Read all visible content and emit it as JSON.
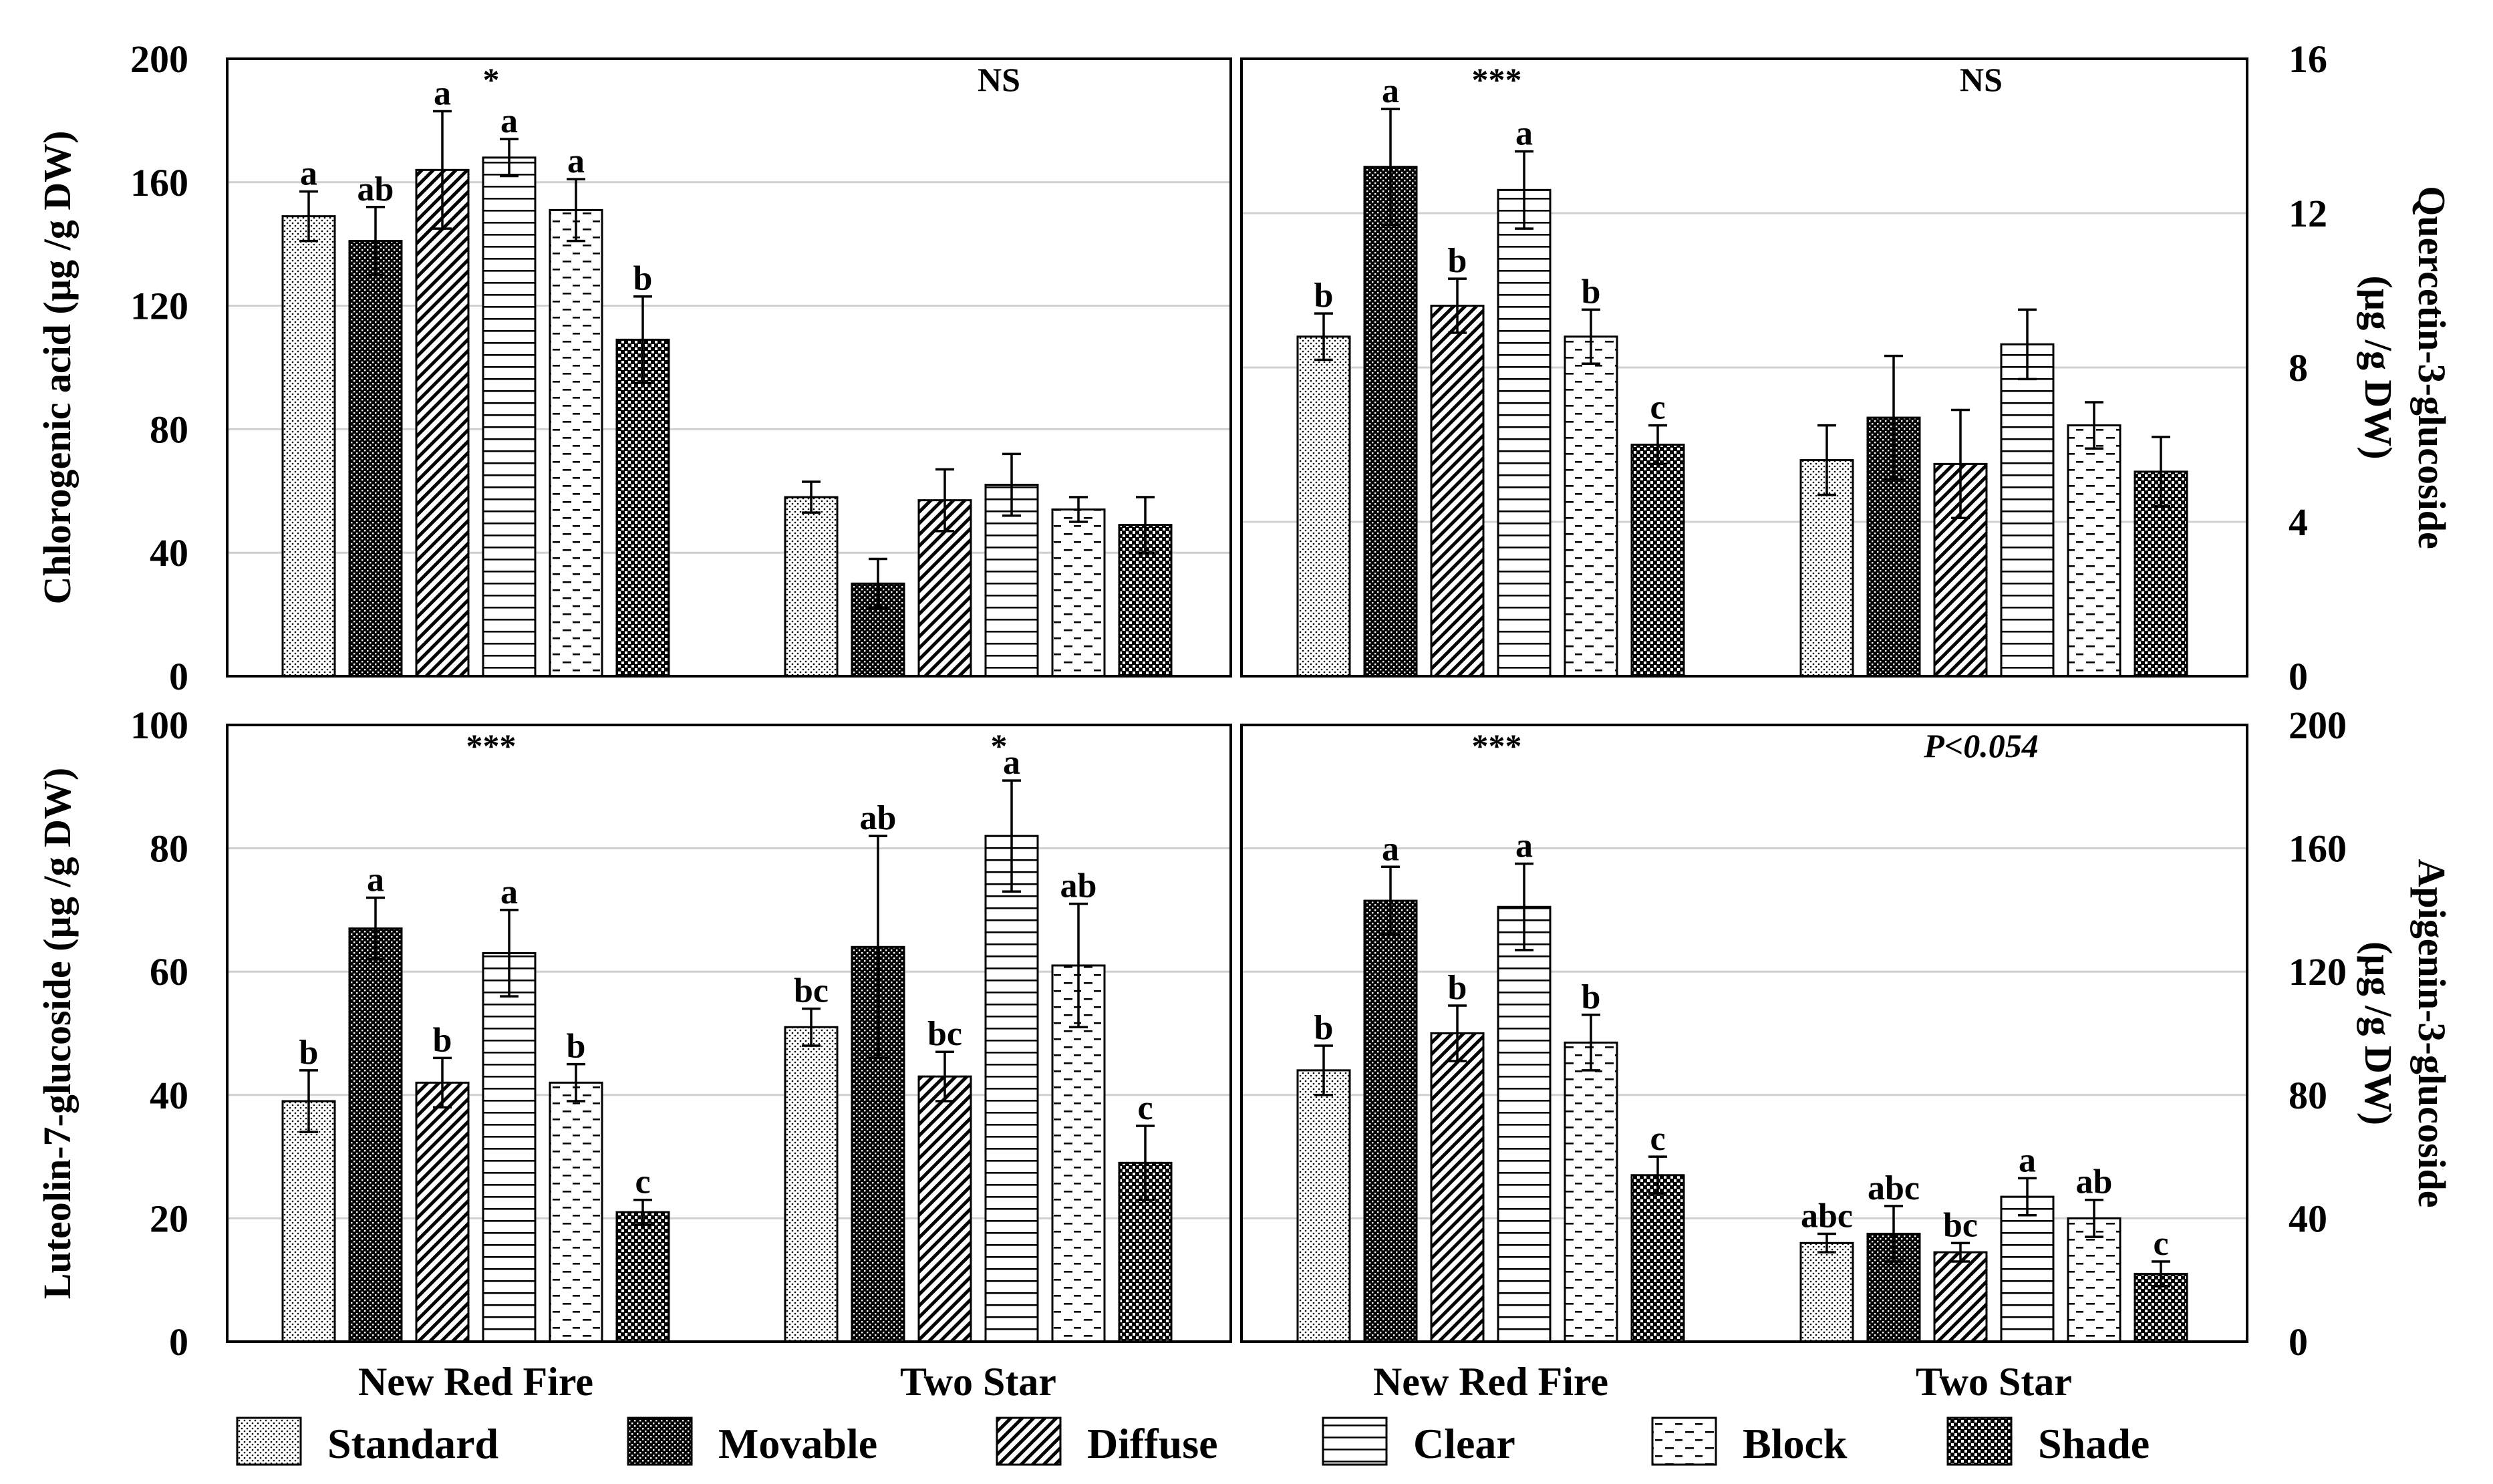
{
  "chart_data": [
    {
      "type": "bar",
      "panel": "top-left",
      "ylabel": "Chlorogenic acid (µg /g DW)",
      "ylim": [
        0,
        200
      ],
      "ytick_labels": [
        "0",
        "40",
        "80",
        "120",
        "160",
        "200"
      ],
      "categories": [
        "New Red Fire",
        "Two Star"
      ],
      "series": [
        {
          "name": "Standard",
          "values": [
            149,
            58
          ],
          "errors": [
            8,
            5
          ],
          "letters": [
            "a",
            ""
          ]
        },
        {
          "name": "Movable",
          "values": [
            141,
            30
          ],
          "errors": [
            11,
            8
          ],
          "letters": [
            "ab",
            ""
          ]
        },
        {
          "name": "Diffuse",
          "values": [
            164,
            57
          ],
          "errors": [
            19,
            10
          ],
          "letters": [
            "a",
            ""
          ]
        },
        {
          "name": "Clear",
          "values": [
            168,
            62
          ],
          "errors": [
            6,
            10
          ],
          "letters": [
            "a",
            ""
          ]
        },
        {
          "name": "Block",
          "values": [
            151,
            54
          ],
          "errors": [
            10,
            4
          ],
          "letters": [
            "a",
            ""
          ]
        },
        {
          "name": "Shade",
          "values": [
            109,
            49
          ],
          "errors": [
            14,
            9
          ],
          "letters": [
            "b",
            ""
          ]
        }
      ],
      "annotations": [
        "*",
        "NS"
      ]
    },
    {
      "type": "bar",
      "panel": "top-right",
      "ylabel_line1": "Quercetin-3-glucoside",
      "ylabel_line2": "(µg /g DW)",
      "ylim": [
        0,
        16
      ],
      "ytick_labels": [
        "0",
        "4",
        "8",
        "12",
        "16"
      ],
      "categories": [
        "New Red Fire",
        "Two Star"
      ],
      "series": [
        {
          "name": "Standard",
          "values": [
            8.8,
            5.6
          ],
          "errors": [
            0.6,
            0.9
          ],
          "letters": [
            "b",
            ""
          ]
        },
        {
          "name": "Movable",
          "values": [
            13.2,
            6.7
          ],
          "errors": [
            1.5,
            1.6
          ],
          "letters": [
            "a",
            ""
          ]
        },
        {
          "name": "Diffuse",
          "values": [
            9.6,
            5.5
          ],
          "errors": [
            0.7,
            1.4
          ],
          "letters": [
            "b",
            ""
          ]
        },
        {
          "name": "Clear",
          "values": [
            12.6,
            8.6
          ],
          "errors": [
            1.0,
            0.9
          ],
          "letters": [
            "a",
            ""
          ]
        },
        {
          "name": "Block",
          "values": [
            8.8,
            6.5
          ],
          "errors": [
            0.7,
            0.6
          ],
          "letters": [
            "b",
            ""
          ]
        },
        {
          "name": "Shade",
          "values": [
            6.0,
            5.3
          ],
          "errors": [
            0.5,
            0.9
          ],
          "letters": [
            "c",
            ""
          ]
        }
      ],
      "annotations": [
        "***",
        "NS"
      ]
    },
    {
      "type": "bar",
      "panel": "bottom-left",
      "ylabel": "Luteolin-7-glucoside (µg /g DW)",
      "ylim": [
        0,
        100
      ],
      "ytick_labels": [
        "0",
        "20",
        "40",
        "60",
        "80",
        "100"
      ],
      "categories": [
        "New Red Fire",
        "Two Star"
      ],
      "series": [
        {
          "name": "Standard",
          "values": [
            39,
            51
          ],
          "errors": [
            5,
            3
          ],
          "letters": [
            "b",
            "bc"
          ]
        },
        {
          "name": "Movable",
          "values": [
            67,
            64
          ],
          "errors": [
            5,
            18
          ],
          "letters": [
            "a",
            "ab"
          ]
        },
        {
          "name": "Diffuse",
          "values": [
            42,
            43
          ],
          "errors": [
            4,
            4
          ],
          "letters": [
            "b",
            "bc"
          ]
        },
        {
          "name": "Clear",
          "values": [
            63,
            82
          ],
          "errors": [
            7,
            9
          ],
          "letters": [
            "a",
            "a"
          ]
        },
        {
          "name": "Block",
          "values": [
            42,
            61
          ],
          "errors": [
            3,
            10
          ],
          "letters": [
            "b",
            "ab"
          ]
        },
        {
          "name": "Shade",
          "values": [
            21,
            29
          ],
          "errors": [
            2,
            6
          ],
          "letters": [
            "c",
            "c"
          ]
        }
      ],
      "annotations": [
        "***",
        "*"
      ]
    },
    {
      "type": "bar",
      "panel": "bottom-right",
      "ylabel_line1": "Apigenin-3-glucoside",
      "ylabel_line2": "(µg /g DW)",
      "ylim": [
        0,
        200
      ],
      "ytick_labels": [
        "0",
        "40",
        "80",
        "120",
        "160",
        "200"
      ],
      "categories": [
        "New Red Fire",
        "Two Star"
      ],
      "series": [
        {
          "name": "Standard",
          "values": [
            88,
            32
          ],
          "errors": [
            8,
            3
          ],
          "letters": [
            "b",
            "abc"
          ]
        },
        {
          "name": "Movable",
          "values": [
            143,
            35
          ],
          "errors": [
            11,
            9
          ],
          "letters": [
            "a",
            "abc"
          ]
        },
        {
          "name": "Diffuse",
          "values": [
            100,
            29
          ],
          "errors": [
            9,
            3
          ],
          "letters": [
            "b",
            "bc"
          ]
        },
        {
          "name": "Clear",
          "values": [
            141,
            47
          ],
          "errors": [
            14,
            6
          ],
          "letters": [
            "a",
            "a"
          ]
        },
        {
          "name": "Block",
          "values": [
            97,
            40
          ],
          "errors": [
            9,
            6
          ],
          "letters": [
            "b",
            "ab"
          ]
        },
        {
          "name": "Shade",
          "values": [
            54,
            22
          ],
          "errors": [
            6,
            4
          ],
          "letters": [
            "c",
            "c"
          ]
        }
      ],
      "annotations": [
        "***",
        "P<0.054"
      ]
    }
  ],
  "legend": [
    "Standard",
    "Movable",
    "Diffuse",
    "Clear",
    "Block",
    "Shade"
  ]
}
